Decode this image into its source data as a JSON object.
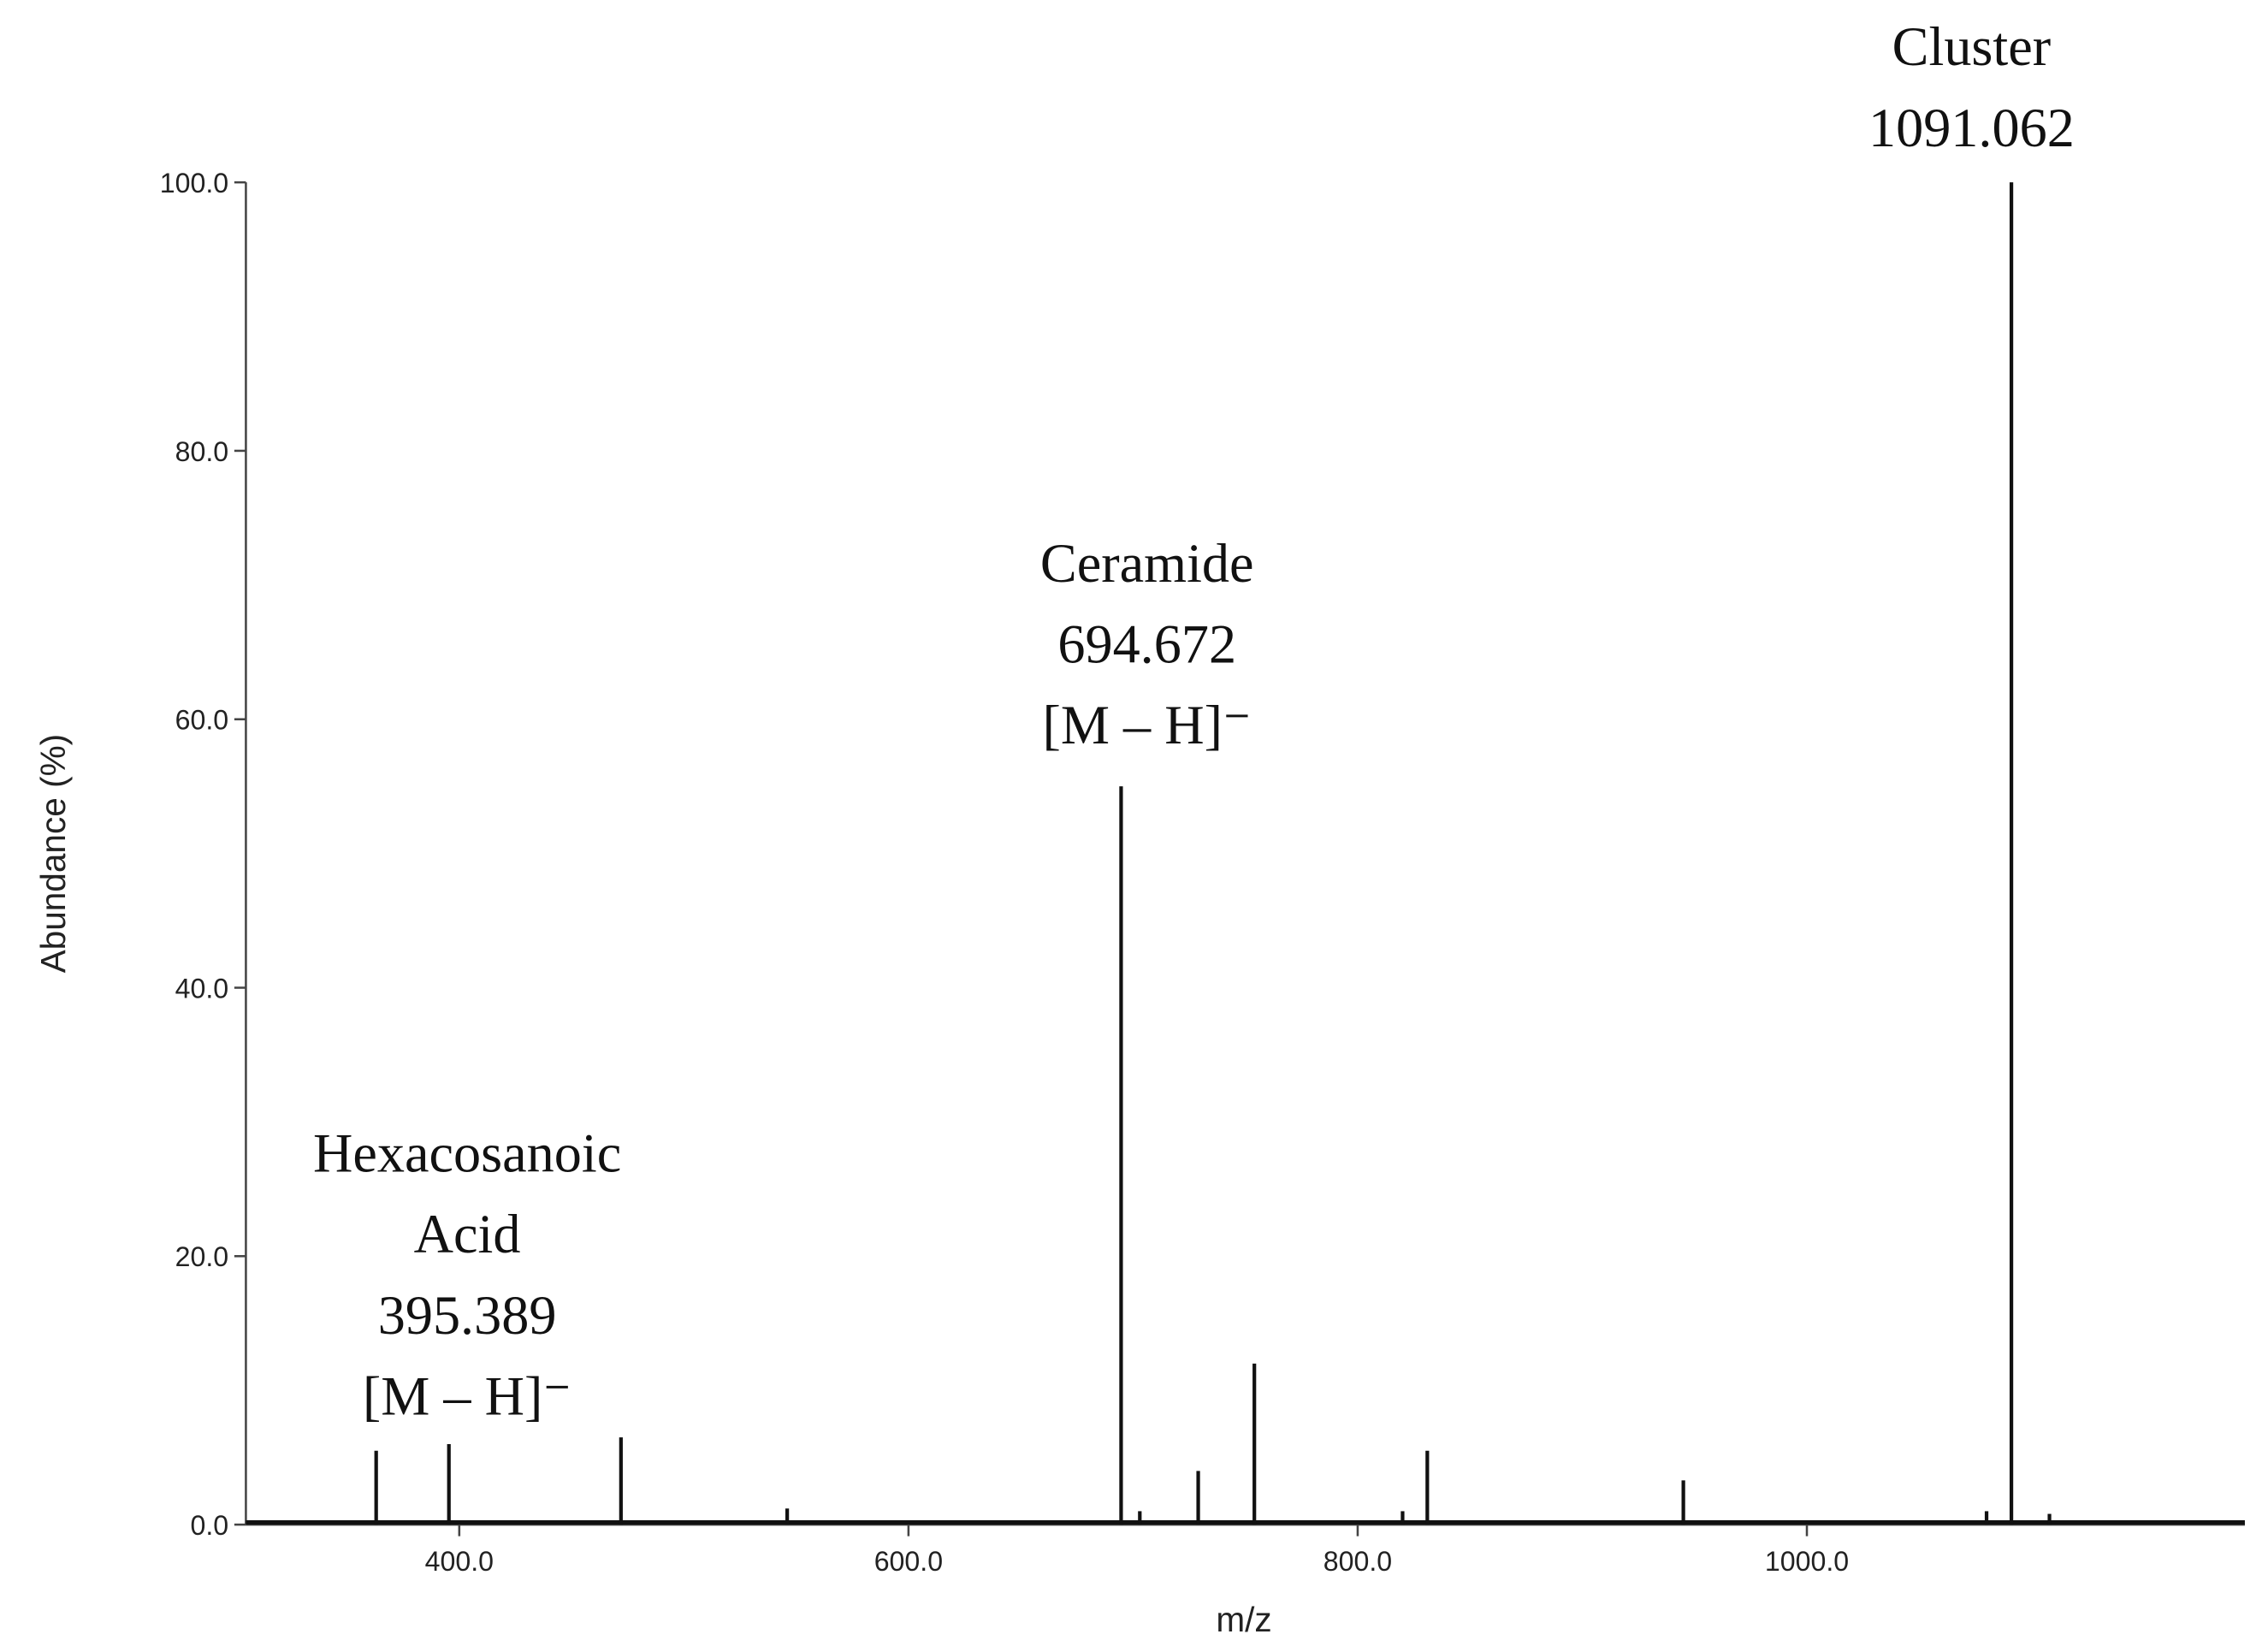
{
  "chart_data": {
    "type": "spectrum",
    "x_label": "m/z",
    "y_label": "Abundance (%)",
    "x": [
      363,
      395.389,
      472,
      546,
      694.672,
      703,
      729,
      754,
      820,
      831,
      945,
      1080,
      1091.062,
      1108
    ],
    "values": [
      5.5,
      6,
      6.5,
      1.2,
      55,
      1,
      4,
      12,
      1,
      5.5,
      3.3,
      1,
      100,
      0.8
    ],
    "color": "#111111",
    "xlim": [
      305,
      1195
    ],
    "ylim": [
      0,
      100
    ],
    "xticks": [
      {
        "value": 400,
        "label": "400.0"
      },
      {
        "value": 600,
        "label": "600.0"
      },
      {
        "value": 800,
        "label": "800.0"
      },
      {
        "value": 1000,
        "label": "1000.0"
      }
    ],
    "yticks": [
      {
        "value": 0,
        "label": "0.0"
      },
      {
        "value": 20,
        "label": "20.0"
      },
      {
        "value": 40,
        "label": "40.0"
      },
      {
        "value": 60,
        "label": "60.0"
      },
      {
        "value": 80,
        "label": "80.0"
      },
      {
        "value": 100,
        "label": "100.0"
      }
    ],
    "annotations": [
      {
        "lines": [
          "Hexacosanoic",
          "Acid",
          "395.389",
          "[M – H]⁻"
        ]
      },
      {
        "lines": [
          "Ceramide",
          "694.672",
          "[M – H]⁻"
        ]
      },
      {
        "lines": [
          "Cluster",
          "1091.062"
        ]
      }
    ]
  }
}
